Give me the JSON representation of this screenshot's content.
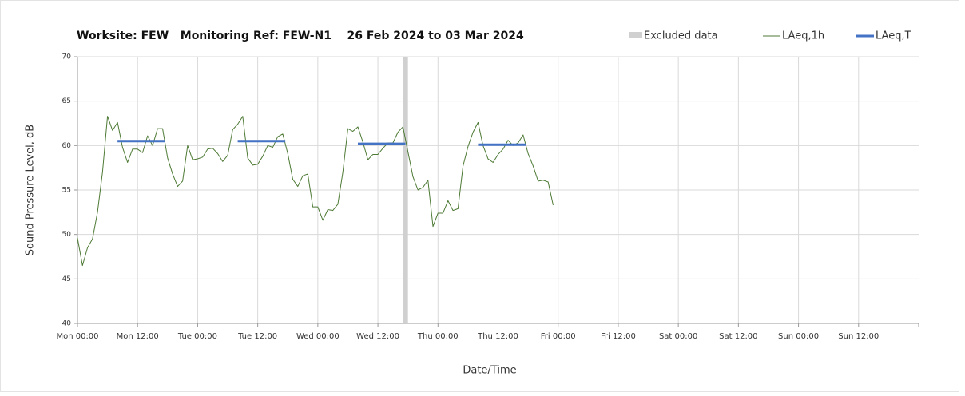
{
  "chart_data": {
    "type": "line",
    "title": "Worksite: FEW   Monitoring Ref: FEW-N1    26 Feb 2024 to 03 Mar 2024",
    "ylabel": "Sound Pressure Level, dB",
    "xlabel": "Date/Time",
    "xlim": [
      0,
      168
    ],
    "ylim": [
      40,
      70
    ],
    "yticks": [
      40,
      45,
      50,
      55,
      60,
      65,
      70
    ],
    "xticks": [
      {
        "value": 0,
        "label": "Mon 00:00"
      },
      {
        "value": 12,
        "label": "Mon 12:00"
      },
      {
        "value": 24,
        "label": "Tue 00:00"
      },
      {
        "value": 36,
        "label": "Tue 12:00"
      },
      {
        "value": 48,
        "label": "Wed 00:00"
      },
      {
        "value": 60,
        "label": "Wed 12:00"
      },
      {
        "value": 72,
        "label": "Thu 00:00"
      },
      {
        "value": 84,
        "label": "Thu 12:00"
      },
      {
        "value": 96,
        "label": "Fri 00:00"
      },
      {
        "value": 108,
        "label": "Fri 12:00"
      },
      {
        "value": 120,
        "label": "Sat 00:00"
      },
      {
        "value": 132,
        "label": "Sat 12:00"
      },
      {
        "value": 144,
        "label": "Sun 00:00"
      },
      {
        "value": 156,
        "label": "Sun 12:00"
      }
    ],
    "grid": true,
    "excluded": {
      "name": "Excluded data",
      "color": "#d0d0d0",
      "x": [
        65,
        66
      ]
    },
    "series": [
      {
        "name": "LAeq,1h",
        "color": "#4e7a35",
        "width": 1,
        "x": [
          0,
          1,
          2,
          3,
          4,
          5,
          6,
          7,
          8,
          9,
          10,
          11,
          12,
          13,
          14,
          15,
          16,
          17,
          18,
          19,
          20,
          21,
          22,
          23,
          24,
          25,
          26,
          27,
          28,
          29,
          30,
          31,
          32,
          33,
          34,
          35,
          36,
          37,
          38,
          39,
          40,
          41,
          42,
          43,
          44,
          45,
          46,
          47,
          48,
          49,
          50,
          51,
          52,
          53,
          54,
          55,
          56,
          57,
          58,
          59,
          60,
          61,
          62,
          63,
          64,
          65,
          66,
          67,
          68,
          69,
          70,
          71,
          72,
          73,
          74,
          75,
          76,
          77,
          78,
          79,
          80,
          81,
          82,
          83,
          84,
          85,
          86,
          87,
          88,
          89,
          90,
          91,
          92,
          93,
          94,
          95
        ],
        "values": [
          49.6,
          46.5,
          48.5,
          49.5,
          52.5,
          57,
          63.3,
          61.7,
          62.6,
          59.8,
          58.1,
          59.6,
          59.6,
          59.2,
          61.1,
          60,
          61.9,
          61.9,
          58.6,
          56.8,
          55.4,
          56,
          60,
          58.4,
          58.5,
          58.7,
          59.6,
          59.7,
          59.1,
          58.2,
          58.9,
          61.8,
          62.4,
          63.3,
          58.6,
          57.8,
          57.9,
          58.8,
          60,
          59.8,
          61,
          61.3,
          59.1,
          56.2,
          55.4,
          56.6,
          56.8,
          53.1,
          53.1,
          51.6,
          52.8,
          52.7,
          53.4,
          57,
          61.9,
          61.6,
          62.1,
          60.4,
          58.4,
          59,
          59,
          59.7,
          60.3,
          60.3,
          61.5,
          62.1,
          59.3,
          56.5,
          55,
          55.3,
          56.1,
          50.9,
          52.4,
          52.4,
          53.8,
          52.7,
          52.9,
          57.7,
          59.9,
          61.5,
          62.6,
          60,
          58.5,
          58.1,
          59,
          59.6,
          60.6,
          60,
          60.3,
          61.2,
          59.1,
          57.7,
          56,
          56.1,
          55.9,
          53.3
        ]
      },
      {
        "name": "LAeq,T",
        "color": "#4472c4",
        "width": 3,
        "x": [
          8,
          17.5,
          17.5,
          32,
          41.5,
          41.5,
          56,
          65.5,
          65.5,
          80,
          89.5
        ],
        "values": [
          60.5,
          60.5,
          null,
          60.5,
          60.5,
          null,
          60.2,
          60.2,
          null,
          60.1,
          60.1
        ]
      }
    ]
  }
}
